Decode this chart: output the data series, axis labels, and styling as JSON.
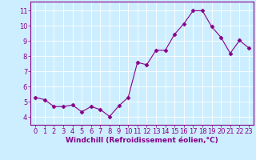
{
  "x": [
    0,
    1,
    2,
    3,
    4,
    5,
    6,
    7,
    8,
    9,
    10,
    11,
    12,
    13,
    14,
    15,
    16,
    17,
    18,
    19,
    20,
    21,
    22,
    23
  ],
  "y": [
    5.3,
    5.15,
    4.7,
    4.7,
    4.8,
    4.35,
    4.7,
    4.5,
    4.05,
    4.75,
    5.3,
    7.6,
    7.45,
    8.4,
    8.4,
    9.45,
    10.15,
    11.0,
    11.0,
    9.95,
    9.25,
    8.2,
    9.05,
    8.55
  ],
  "line_color": "#880088",
  "marker": "D",
  "marker_size": 2.5,
  "bg_color": "#cceeff",
  "grid_color": "#ffffff",
  "xlabel": "Windchill (Refroidissement éolien,°C)",
  "xlim": [
    -0.5,
    23.5
  ],
  "ylim": [
    3.5,
    11.6
  ],
  "yticks": [
    4,
    5,
    6,
    7,
    8,
    9,
    10,
    11
  ],
  "xticks": [
    0,
    1,
    2,
    3,
    4,
    5,
    6,
    7,
    8,
    9,
    10,
    11,
    12,
    13,
    14,
    15,
    16,
    17,
    18,
    19,
    20,
    21,
    22,
    23
  ],
  "tick_color": "#880088",
  "xlabel_color": "#880088",
  "axis_label_fontsize": 6.5,
  "tick_fontsize": 6,
  "spine_color": "#880088",
  "linewidth": 0.8
}
